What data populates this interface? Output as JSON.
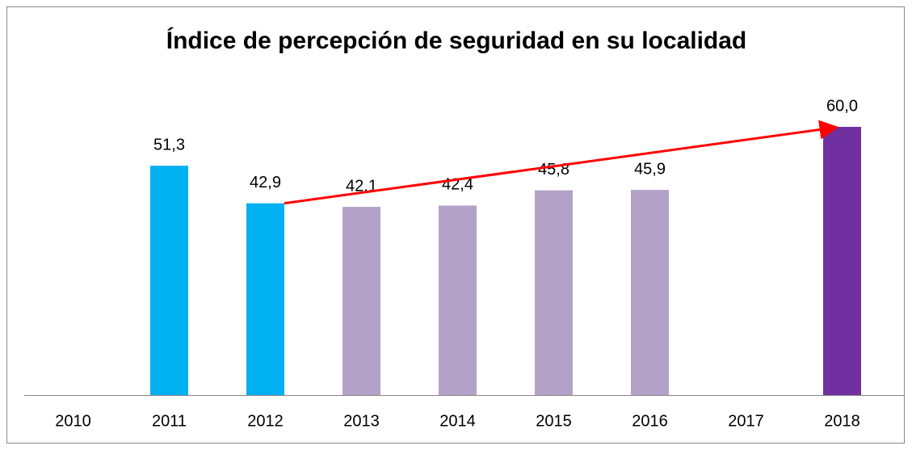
{
  "chart_data": {
    "type": "bar",
    "title": "Índice de percepción de seguridad en su localidad",
    "categories": [
      "2010",
      "2011",
      "2012",
      "2013",
      "2014",
      "2015",
      "2016",
      "2017",
      "2018"
    ],
    "values": [
      null,
      51.3,
      42.9,
      42.1,
      42.4,
      45.8,
      45.9,
      null,
      60.0
    ],
    "value_labels": [
      null,
      "51,3",
      "42,9",
      "42,1",
      "42,4",
      "45,8",
      "45,9",
      null,
      "60,0"
    ],
    "colors": [
      null,
      "#00b0f0",
      "#00b0f0",
      "#b3a2c7",
      "#b3a2c7",
      "#b3a2c7",
      "#b3a2c7",
      null,
      "#7030a0"
    ]
  }
}
